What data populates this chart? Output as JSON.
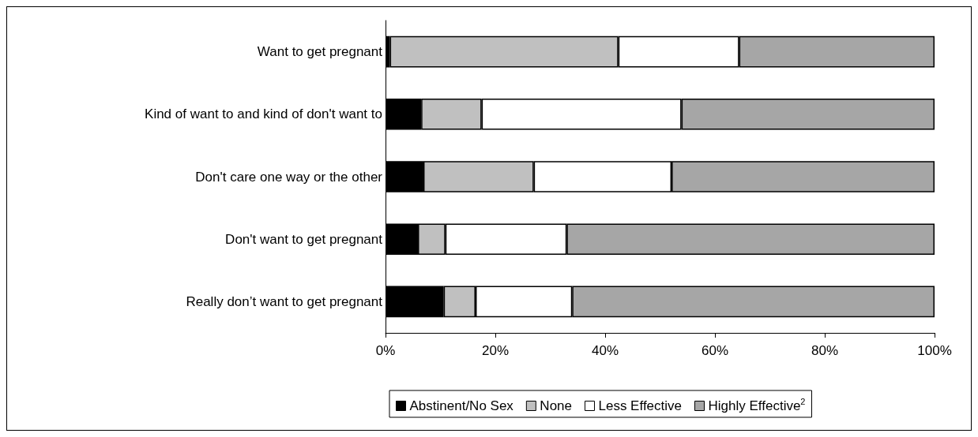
{
  "chart_data": {
    "type": "bar",
    "orientation": "horizontal",
    "stacked": true,
    "categories": [
      "Want to get pregnant",
      "Kind of want to and kind of don't want to",
      "Don't care one way or the other",
      "Don't want to get pregnant",
      "Really don’t want to get pregnant"
    ],
    "series": [
      {
        "name": "Abstinent/No Sex",
        "color": "#000000",
        "values": [
          0.8,
          6.5,
          6.9,
          5.9,
          10.6
        ]
      },
      {
        "name": "None",
        "color": "#c0c0c0",
        "values": [
          41.6,
          11.0,
          20.1,
          5.0,
          5.8
        ]
      },
      {
        "name": "Less Effective",
        "color": "#ffffff",
        "values": [
          22.0,
          36.4,
          25.1,
          22.1,
          17.6
        ]
      },
      {
        "name": "Highly Effective$^{2}$",
        "color": "#a6a6a6",
        "values": [
          35.6,
          46.1,
          47.9,
          67.0,
          66.0
        ]
      }
    ],
    "xlim": [
      0,
      100
    ],
    "xticks": [
      {
        "value": 0,
        "label": "0%"
      },
      {
        "value": 20,
        "label": "20%"
      },
      {
        "value": 40,
        "label": "40%"
      },
      {
        "value": 60,
        "label": "60%"
      },
      {
        "value": 80,
        "label": "80%"
      },
      {
        "value": 100,
        "label": "100%"
      }
    ],
    "grid": false,
    "legend": "bottom"
  }
}
